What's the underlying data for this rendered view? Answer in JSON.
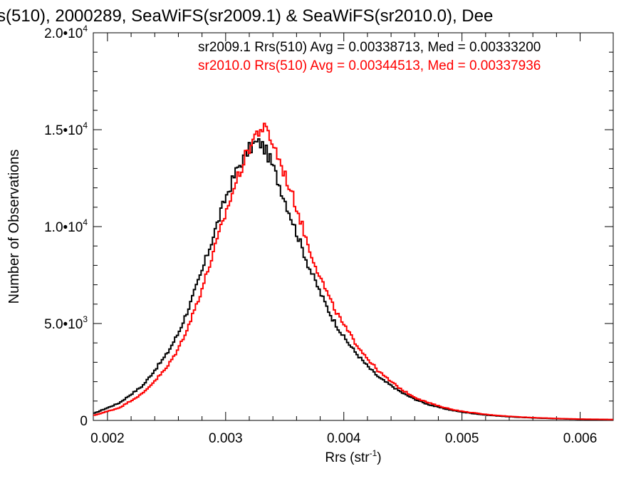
{
  "chart_data": {
    "type": "line",
    "title": "s(510), 2000289, SeaWiFS(sr2009.1) & SeaWiFS(sr2010.0), Dee",
    "xlabel": "Rrs (str",
    "xlabel_sup": "-1",
    "xlabel_close": ")",
    "ylabel": "Number of Observations",
    "xlim": [
      0.00188,
      0.00628
    ],
    "ylim": [
      0,
      20000
    ],
    "x_ticks": [
      {
        "value": 0.002,
        "label": "0.002"
      },
      {
        "value": 0.003,
        "label": "0.003"
      },
      {
        "value": 0.004,
        "label": "0.004"
      },
      {
        "value": 0.005,
        "label": "0.005"
      },
      {
        "value": 0.006,
        "label": "0.006"
      }
    ],
    "y_ticks": [
      {
        "value": 0,
        "label": "0",
        "exp": ""
      },
      {
        "value": 5000,
        "label": "5.0•10",
        "exp": "3"
      },
      {
        "value": 10000,
        "label": "1.0•10",
        "exp": "4"
      },
      {
        "value": 15000,
        "label": "1.5•10",
        "exp": "4"
      },
      {
        "value": 20000,
        "label": "2.0•10",
        "exp": "4"
      }
    ],
    "legend_placement": "top-right",
    "series": [
      {
        "name": "sr2009.1",
        "color": "#000000",
        "legend_text": "sr2009.1 Rrs(510) Avg = 0.00338713, Med = 0.00333200",
        "x": [
          0.00188,
          0.0021,
          0.0023,
          0.0025,
          0.0026,
          0.0027,
          0.0028,
          0.0029,
          0.003,
          0.0031,
          0.0032,
          0.00325,
          0.0033,
          0.00335,
          0.0034,
          0.0035,
          0.0036,
          0.0037,
          0.0038,
          0.0039,
          0.004,
          0.0041,
          0.0042,
          0.0043,
          0.0044,
          0.0045,
          0.0046,
          0.0047,
          0.0048,
          0.0049,
          0.005,
          0.0052,
          0.0054,
          0.0056,
          0.0058,
          0.006,
          0.00628
        ],
        "y": [
          350,
          900,
          1800,
          3400,
          4500,
          6000,
          7700,
          9600,
          11500,
          13000,
          14000,
          14300,
          14300,
          13800,
          13100,
          11400,
          9700,
          8000,
          6600,
          5300,
          4300,
          3500,
          2800,
          2200,
          1800,
          1400,
          1100,
          850,
          680,
          540,
          430,
          280,
          190,
          130,
          90,
          60,
          40
        ]
      },
      {
        "name": "sr2010.0",
        "color": "#ff0000",
        "legend_text": "sr2010.0 Rrs(510) Avg = 0.00344513, Med = 0.00337936",
        "x": [
          0.00188,
          0.0021,
          0.0023,
          0.0025,
          0.0026,
          0.0027,
          0.0028,
          0.0029,
          0.003,
          0.0031,
          0.0032,
          0.00325,
          0.0033,
          0.00335,
          0.0034,
          0.0035,
          0.0036,
          0.0037,
          0.0038,
          0.0039,
          0.004,
          0.0041,
          0.0042,
          0.0043,
          0.0044,
          0.0045,
          0.0046,
          0.0047,
          0.0048,
          0.0049,
          0.005,
          0.0052,
          0.0054,
          0.0056,
          0.0058,
          0.006,
          0.00628
        ],
        "y": [
          250,
          650,
          1400,
          2700,
          3700,
          5100,
          6800,
          8700,
          10700,
          12500,
          14100,
          14700,
          15100,
          14900,
          14300,
          12700,
          11000,
          9000,
          7400,
          6000,
          4900,
          4000,
          3200,
          2500,
          2000,
          1550,
          1200,
          950,
          750,
          590,
          470,
          310,
          210,
          145,
          100,
          70,
          45
        ]
      }
    ]
  }
}
